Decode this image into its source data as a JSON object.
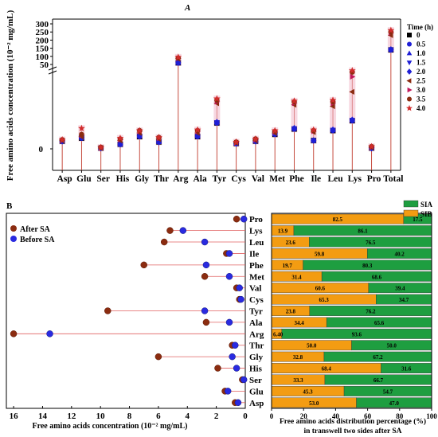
{
  "panel_labels": {
    "a": "A",
    "b": "B"
  },
  "chart_data": [
    {
      "type": "scatter",
      "panel": "A",
      "ylabel": "Free amino acids concentration (10⁻² mg/mL)",
      "xlabel": "",
      "y_ticks_upper": [
        "50",
        "100",
        "150",
        "200",
        "250",
        "300"
      ],
      "y_ticks_lower": [
        "0"
      ],
      "categories": [
        "Asp",
        "Glu",
        "Ser",
        "His",
        "Gly",
        "Thr",
        "Arg",
        "Ala",
        "Tyr",
        "Cys",
        "Val",
        "Met",
        "Phe",
        "Ile",
        "Leu",
        "Lys",
        "Pro",
        "Total"
      ],
      "legend_title": "Time (h)",
      "series": [
        {
          "name": "0",
          "color": "#000000",
          "marker": "square",
          "values": [
            1.0,
            1.4,
            0.1,
            0.6,
            1.6,
            0.9,
            60,
            1.6,
            3.4,
            0.7,
            1.0,
            1.9,
            2.6,
            1.1,
            2.4,
            3.7,
            0.1,
            140
          ]
        },
        {
          "name": "0.5",
          "color": "#1f1fd6",
          "marker": "circle",
          "values": [
            1.0,
            1.4,
            0.1,
            0.6,
            1.6,
            0.9,
            60,
            1.6,
            3.4,
            0.7,
            1.0,
            1.9,
            2.6,
            1.1,
            2.4,
            3.7,
            0.1,
            140
          ]
        },
        {
          "name": "1.0",
          "color": "#1f1fd6",
          "marker": "triangle-up",
          "values": [
            1.0,
            1.5,
            0.1,
            0.6,
            1.7,
            0.9,
            61,
            1.7,
            3.5,
            0.7,
            1.0,
            2.0,
            2.7,
            1.1,
            2.5,
            3.8,
            0.1,
            142
          ]
        },
        {
          "name": "1.5",
          "color": "#1f1fd6",
          "marker": "triangle-down",
          "values": [
            1.0,
            1.5,
            0.1,
            0.6,
            1.7,
            0.9,
            61,
            1.7,
            3.5,
            0.7,
            1.0,
            2.0,
            2.7,
            1.1,
            2.5,
            3.8,
            0.1,
            142
          ]
        },
        {
          "name": "2.0",
          "color": "#1f1fd6",
          "marker": "diamond",
          "values": [
            1.0,
            1.5,
            0.1,
            0.6,
            1.7,
            0.9,
            61,
            1.7,
            3.5,
            0.7,
            1.0,
            2.0,
            2.7,
            1.1,
            2.5,
            3.8,
            0.1,
            142
          ]
        },
        {
          "name": "2.5",
          "color": "#8b2c10",
          "marker": "triangle-left",
          "values": [
            1.1,
            1.6,
            0.1,
            1.1,
            2.1,
            1.3,
            85,
            2.1,
            6.0,
            0.8,
            1.1,
            2.1,
            5.8,
            2.2,
            5.6,
            7.5,
            0.2,
            230
          ]
        },
        {
          "name": "3.0",
          "color": "#c2185b",
          "marker": "triangle-right",
          "values": [
            1.1,
            1.8,
            0.1,
            1.2,
            2.3,
            1.4,
            88,
            2.3,
            6.2,
            0.8,
            1.2,
            2.2,
            6.0,
            2.3,
            6.0,
            9.5,
            0.2,
            245
          ]
        },
        {
          "name": "3.5",
          "color": "#8b2c10",
          "marker": "circle",
          "values": [
            1.2,
            1.9,
            0.2,
            1.3,
            2.4,
            1.5,
            90,
            2.4,
            6.4,
            0.9,
            1.3,
            2.3,
            6.2,
            2.4,
            6.2,
            10.1,
            0.3,
            250
          ]
        },
        {
          "name": "4.0",
          "color": "#d12b2b",
          "marker": "star",
          "values": [
            1.2,
            2.7,
            0.2,
            1.4,
            2.4,
            1.5,
            95,
            2.5,
            6.6,
            0.9,
            1.3,
            2.4,
            6.3,
            2.5,
            6.4,
            10.3,
            0.3,
            260
          ]
        }
      ]
    },
    {
      "type": "scatter",
      "panel": "B-left",
      "xlabel": "Free amino acids concentration (10⁻² mg/mL)",
      "x_ticks": [
        "16",
        "14",
        "12",
        "10",
        "8",
        "6",
        "4",
        "2",
        "0"
      ],
      "xlim": [
        16.5,
        0
      ],
      "categories": [
        "Pro",
        "Lys",
        "Leu",
        "Ile",
        "Phe",
        "Met",
        "Val",
        "Cys",
        "Tyr",
        "Ala",
        "Arg",
        "Thr",
        "Gly",
        "His",
        "Ser",
        "Glu",
        "Asp"
      ],
      "series": [
        {
          "name": "After SA",
          "color": "#8b2c10",
          "values": [
            0.6,
            5.2,
            5.6,
            1.3,
            7.0,
            2.8,
            0.6,
            0.4,
            9.5,
            2.7,
            16.0,
            0.9,
            6.0,
            1.9,
            0.2,
            1.4,
            0.7
          ]
        },
        {
          "name": "Before SA",
          "color": "#2a2ae0",
          "values": [
            0.1,
            4.3,
            2.8,
            1.1,
            2.7,
            1.1,
            0.4,
            0.3,
            2.8,
            1.1,
            13.5,
            0.7,
            0.9,
            0.6,
            0.1,
            1.2,
            0.5
          ]
        }
      ]
    },
    {
      "type": "bar",
      "panel": "B-right",
      "orientation": "horizontal-stacked",
      "xlabel": "Free amino acids distribution percentage (%)\nin transwell two sides after SA",
      "x_ticks": [
        "0",
        "20",
        "40",
        "60",
        "80",
        "100"
      ],
      "xlim": [
        0,
        100
      ],
      "categories": [
        "Pro",
        "Lys",
        "Leu",
        "Ile",
        "Phe",
        "Met",
        "Val",
        "Cys",
        "Tyr",
        "Ala",
        "Arg",
        "Thr",
        "Gly",
        "His",
        "Ser",
        "Glu",
        "Asp"
      ],
      "series": [
        {
          "name": "SIB",
          "color": "#f39c12",
          "values": [
            82.5,
            13.9,
            23.6,
            59.8,
            19.7,
            31.4,
            60.6,
            65.3,
            23.8,
            34.4,
            6.4,
            50.0,
            32.8,
            68.4,
            33.3,
            45.3,
            53.0
          ]
        },
        {
          "name": "SIA",
          "color": "#1e9e40",
          "values": [
            17.5,
            86.1,
            76.5,
            40.2,
            80.3,
            68.6,
            39.4,
            34.7,
            76.2,
            65.6,
            93.6,
            50.0,
            67.2,
            31.6,
            66.7,
            54.7,
            47.0
          ]
        }
      ],
      "labels_sib": [
        "82.5",
        "13.9",
        "23.6",
        "59.8",
        "19.7",
        "31.4",
        "60.6",
        "65.3",
        "23.8",
        "34.4",
        "6.40",
        "50.0",
        "32.8",
        "68.4",
        "33.3",
        "45.3",
        "53.0"
      ],
      "labels_sia": [
        "17.5",
        "86.1",
        "76.5",
        "40.2",
        "80.3",
        "68.6",
        "39.4",
        "34.7",
        "76.2",
        "65.6",
        "93.6",
        "50.0",
        "67.2",
        "31.6",
        "66.7",
        "54.7",
        "47.0"
      ]
    }
  ]
}
